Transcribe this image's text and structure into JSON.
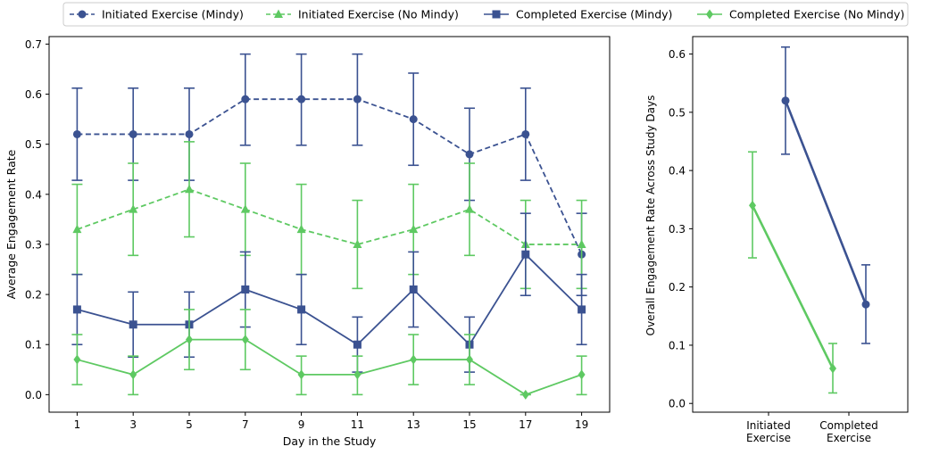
{
  "legend": {
    "placement": "top-center",
    "entries": [
      {
        "label": "Initiated Exercise (Mindy)",
        "color": "#3b5291",
        "marker": "circle",
        "dashed": true
      },
      {
        "label": "Initiated Exercise (No Mindy)",
        "color": "#5ec962",
        "marker": "triangle",
        "dashed": true
      },
      {
        "label": "Completed Exercise (Mindy)",
        "color": "#3b5291",
        "marker": "square",
        "dashed": false
      },
      {
        "label": "Completed Exercise (No Mindy)",
        "color": "#5ec962",
        "marker": "diamond",
        "dashed": false
      }
    ]
  },
  "chart_data": [
    {
      "type": "line",
      "xlabel": "Day in the Study",
      "ylabel": "Average Engagement Rate",
      "xlim": [
        0,
        20
      ],
      "ylim": [
        -0.035,
        0.715
      ],
      "x_ticks": [
        1,
        3,
        5,
        7,
        9,
        11,
        13,
        15,
        17,
        19
      ],
      "y_ticks": [
        0.0,
        0.1,
        0.2,
        0.3,
        0.4,
        0.5,
        0.6,
        0.7
      ],
      "y_tick_labels": [
        "0.0",
        "0.1",
        "0.2",
        "0.3",
        "0.4",
        "0.5",
        "0.6",
        "0.7"
      ],
      "grid": false,
      "x": [
        1,
        3,
        5,
        7,
        9,
        11,
        13,
        15,
        17,
        19
      ],
      "series": [
        {
          "name": "Initiated Exercise (Mindy)",
          "color": "#3b5291",
          "marker": "circle",
          "dashed": true,
          "values": [
            0.52,
            0.52,
            0.52,
            0.59,
            0.59,
            0.59,
            0.55,
            0.48,
            0.52,
            0.28
          ],
          "err_low": [
            0.428,
            0.428,
            0.428,
            0.498,
            0.498,
            0.498,
            0.458,
            0.388,
            0.428,
            0.198
          ],
          "err_high": [
            0.612,
            0.612,
            0.612,
            0.68,
            0.68,
            0.68,
            0.642,
            0.572,
            0.612,
            0.362
          ]
        },
        {
          "name": "Initiated Exercise (No Mindy)",
          "color": "#5ec962",
          "marker": "triangle",
          "dashed": true,
          "values": [
            0.33,
            0.37,
            0.41,
            0.37,
            0.33,
            0.3,
            0.33,
            0.37,
            0.3,
            0.3
          ],
          "err_low": [
            0.24,
            0.278,
            0.315,
            0.278,
            0.24,
            0.212,
            0.24,
            0.278,
            0.212,
            0.212
          ],
          "err_high": [
            0.42,
            0.462,
            0.505,
            0.462,
            0.42,
            0.388,
            0.42,
            0.462,
            0.388,
            0.388
          ]
        },
        {
          "name": "Completed Exercise (Mindy)",
          "color": "#3b5291",
          "marker": "square",
          "dashed": false,
          "values": [
            0.17,
            0.14,
            0.14,
            0.21,
            0.17,
            0.1,
            0.21,
            0.1,
            0.28,
            0.17
          ],
          "err_low": [
            0.1,
            0.075,
            0.075,
            0.135,
            0.1,
            0.045,
            0.135,
            0.045,
            0.198,
            0.1
          ],
          "err_high": [
            0.24,
            0.205,
            0.205,
            0.285,
            0.24,
            0.155,
            0.285,
            0.155,
            0.362,
            0.24
          ]
        },
        {
          "name": "Completed Exercise (No Mindy)",
          "color": "#5ec962",
          "marker": "diamond",
          "dashed": false,
          "values": [
            0.07,
            0.04,
            0.11,
            0.11,
            0.04,
            0.04,
            0.07,
            0.07,
            0.0,
            0.04
          ],
          "err_low": [
            0.02,
            0.0,
            0.05,
            0.05,
            0.0,
            0.0,
            0.02,
            0.02,
            0.0,
            0.0
          ],
          "err_high": [
            0.12,
            0.077,
            0.17,
            0.17,
            0.077,
            0.077,
            0.12,
            0.12,
            0.0,
            0.077
          ]
        }
      ]
    },
    {
      "type": "line",
      "xlabel": "",
      "ylabel": "Overall Engagement Rate Across Study Days",
      "categories": [
        "Initiated\nExercise",
        "Completed\nExercise"
      ],
      "ylim": [
        -0.015,
        0.63
      ],
      "y_ticks": [
        0.0,
        0.1,
        0.2,
        0.3,
        0.4,
        0.5,
        0.6
      ],
      "y_tick_labels": [
        "0.0",
        "0.1",
        "0.2",
        "0.3",
        "0.4",
        "0.5",
        "0.6"
      ],
      "grid": false,
      "series": [
        {
          "name": "Mindy",
          "color": "#3b5291",
          "marker": "circle",
          "values": [
            0.52,
            0.17
          ],
          "err_low": [
            0.428,
            0.103
          ],
          "err_high": [
            0.612,
            0.238
          ]
        },
        {
          "name": "No Mindy",
          "color": "#5ec962",
          "marker": "diamond",
          "values": [
            0.34,
            0.06
          ],
          "err_low": [
            0.25,
            0.018
          ],
          "err_high": [
            0.432,
            0.103
          ]
        }
      ]
    }
  ]
}
